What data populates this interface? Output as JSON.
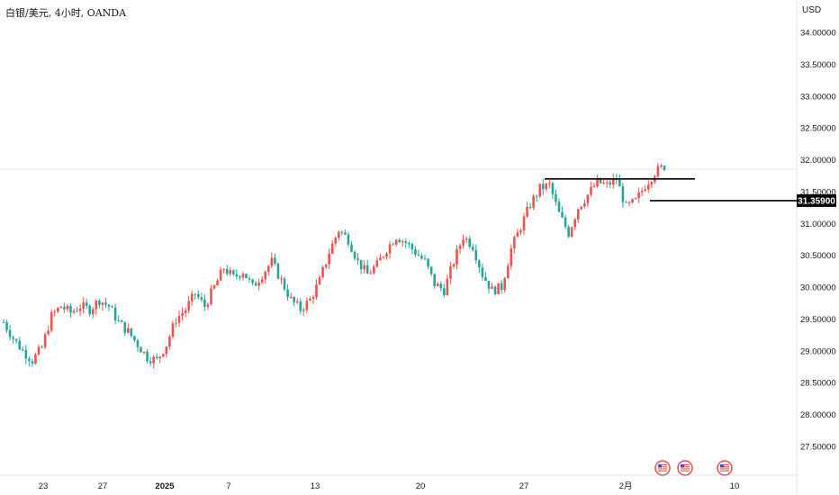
{
  "header": {
    "symbol_title": "白银/美元, 4小时, OANDA",
    "currency": "USD"
  },
  "colors": {
    "up": "#ef5350",
    "down": "#26a69a",
    "line": "#000000",
    "hline": "#e0e3eb"
  },
  "last_price_label": "31.35900",
  "chart_data": {
    "type": "candlestick",
    "title": "白银/美元, 4小时, OANDA",
    "ylabel": "USD",
    "y_ticks": [
      "27.50000",
      "28.00000",
      "28.50000",
      "29.00000",
      "29.50000",
      "30.00000",
      "30.50000",
      "31.00000",
      "31.50000",
      "32.00000",
      "32.50000",
      "33.00000",
      "33.50000",
      "34.00000"
    ],
    "x_ticks": [
      {
        "label": "23",
        "bold": false
      },
      {
        "label": "27",
        "bold": false
      },
      {
        "label": "2025",
        "bold": true
      },
      {
        "label": "7",
        "bold": false
      },
      {
        "label": "13",
        "bold": false
      },
      {
        "label": "20",
        "bold": false
      },
      {
        "label": "27",
        "bold": false
      },
      {
        "label": "2月",
        "bold": false
      },
      {
        "label": "10",
        "bold": false
      }
    ],
    "ylim": [
      27.2,
      34.3
    ],
    "grid": false,
    "last_price": 31.359,
    "horizontal_line": 31.85,
    "resistance_line": 31.7,
    "event_icons": 3,
    "price_path": [
      29.45,
      29.2,
      29.0,
      28.85,
      29.05,
      29.55,
      29.7,
      29.6,
      29.7,
      29.65,
      29.8,
      29.7,
      29.45,
      29.3,
      29.1,
      28.9,
      28.85,
      29.1,
      29.5,
      29.65,
      29.9,
      29.7,
      30.0,
      30.3,
      30.15,
      30.25,
      30.0,
      30.2,
      30.4,
      30.1,
      29.8,
      29.65,
      29.8,
      30.1,
      30.55,
      30.9,
      30.75,
      30.4,
      30.2,
      30.35,
      30.6,
      30.8,
      30.7,
      30.55,
      30.4,
      30.05,
      29.95,
      30.4,
      30.8,
      30.65,
      30.2,
      29.95,
      30.0,
      30.6,
      30.95,
      31.3,
      31.55,
      31.6,
      31.15,
      30.85,
      31.25,
      31.45,
      31.65,
      31.6,
      31.7,
      31.25,
      31.35,
      31.6,
      31.8,
      31.9
    ],
    "note": "price_path is an approximate close per bar read off the chart"
  }
}
